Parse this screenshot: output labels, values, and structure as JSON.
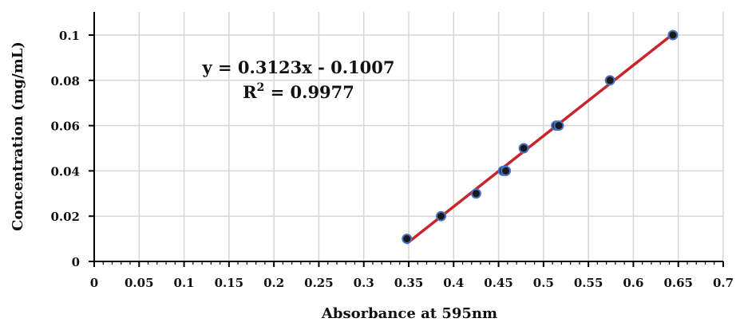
{
  "chart_data": {
    "type": "scatter",
    "xlabel": "Absorbance at 595nm",
    "ylabel": "Concentration (mg/mL)",
    "xlim": [
      0,
      0.7
    ],
    "ylim": [
      0,
      0.1
    ],
    "x_ticks": [
      "0",
      "0.05",
      "0.1",
      "0.15",
      "0.2",
      "0.25",
      "0.3",
      "0.35",
      "0.4",
      "0.45",
      "0.5",
      "0.55",
      "0.6",
      "0.65",
      "0.7"
    ],
    "y_ticks": [
      "0",
      "0.02",
      "0.04",
      "0.06",
      "0.08",
      "0.1"
    ],
    "grid": true,
    "legend": "none",
    "series": [
      {
        "x": [
          0.348,
          0.386,
          0.425,
          0.455,
          0.458,
          0.478,
          0.514,
          0.517,
          0.574,
          0.644
        ],
        "y": [
          0.01,
          0.02,
          0.03,
          0.04,
          0.04,
          0.05,
          0.06,
          0.06,
          0.08,
          0.1
        ],
        "marker_color": "#1a1a1a",
        "marker_edge_color": "#4a72c4"
      }
    ],
    "trendline": {
      "slope": 0.3123,
      "intercept": -0.1007,
      "x_range": [
        0.348,
        0.644
      ],
      "color": "#c8252c"
    },
    "annotations": {
      "equation": "y = 0.3123x - 0.1007",
      "r2_prefix": "R",
      "r2_sup": "2",
      "r2_suffix": " = 0.9977"
    }
  }
}
